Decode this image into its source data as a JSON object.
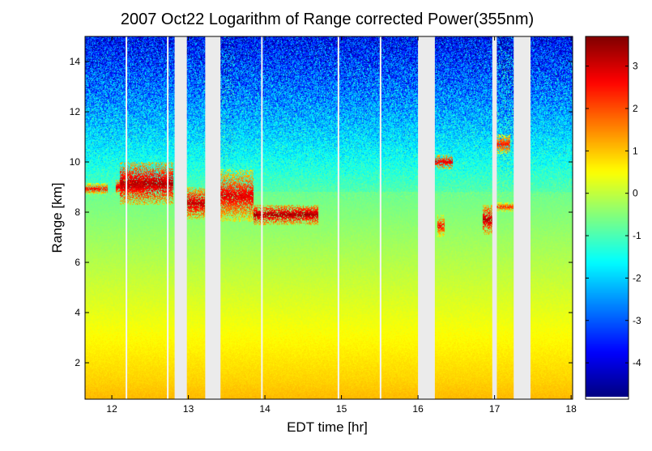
{
  "chart_data": {
    "type": "heatmap",
    "title": "2007 Oct22  Logarithm of Range corrected Power(355nm)",
    "xlabel": "EDT time [hr]",
    "ylabel": "Range [km]",
    "xlim": [
      11.65,
      18.02
    ],
    "ylim": [
      0.55,
      15.0
    ],
    "xticks": [
      12,
      13,
      14,
      15,
      16,
      17,
      18
    ],
    "yticks": [
      2,
      4,
      6,
      8,
      10,
      12,
      14
    ],
    "colorbar": {
      "colormap": "jet",
      "clim": [
        -4.8,
        3.7
      ],
      "ticks": [
        3,
        2,
        1,
        0,
        -1,
        -2,
        -3,
        -4
      ]
    },
    "data_gaps_hr": [
      [
        12.82,
        12.98
      ],
      [
        13.22,
        13.42
      ],
      [
        16.0,
        16.22
      ],
      [
        16.97,
        17.03
      ],
      [
        17.25,
        17.47
      ]
    ],
    "cloud_layers": [
      {
        "t0": 11.65,
        "t1": 11.95,
        "z0": 8.7,
        "z1": 9.15,
        "value": 2.6
      },
      {
        "t0": 12.05,
        "t1": 12.45,
        "z0": 8.7,
        "z1": 9.3,
        "value": 3.0
      },
      {
        "t0": 12.1,
        "t1": 12.8,
        "z0": 8.3,
        "z1": 10.0,
        "value": 3.3
      },
      {
        "t0": 12.98,
        "t1": 13.22,
        "z0": 7.7,
        "z1": 9.0,
        "value": 3.2
      },
      {
        "t0": 13.42,
        "t1": 13.85,
        "z0": 7.6,
        "z1": 9.7,
        "value": 2.9
      },
      {
        "t0": 13.85,
        "t1": 14.7,
        "z0": 7.5,
        "z1": 8.3,
        "value": 3.4
      },
      {
        "t0": 16.22,
        "t1": 16.45,
        "z0": 9.7,
        "z1": 10.3,
        "value": 2.9
      },
      {
        "t0": 16.25,
        "t1": 16.35,
        "z0": 7.0,
        "z1": 7.9,
        "value": 2.6
      },
      {
        "t0": 16.85,
        "t1": 16.97,
        "z0": 7.1,
        "z1": 8.3,
        "value": 3.3
      },
      {
        "t0": 17.03,
        "t1": 17.2,
        "z0": 10.3,
        "z1": 11.1,
        "value": 2.5
      },
      {
        "t0": 17.03,
        "t1": 17.25,
        "z0": 8.0,
        "z1": 8.4,
        "value": 2.4
      }
    ]
  }
}
